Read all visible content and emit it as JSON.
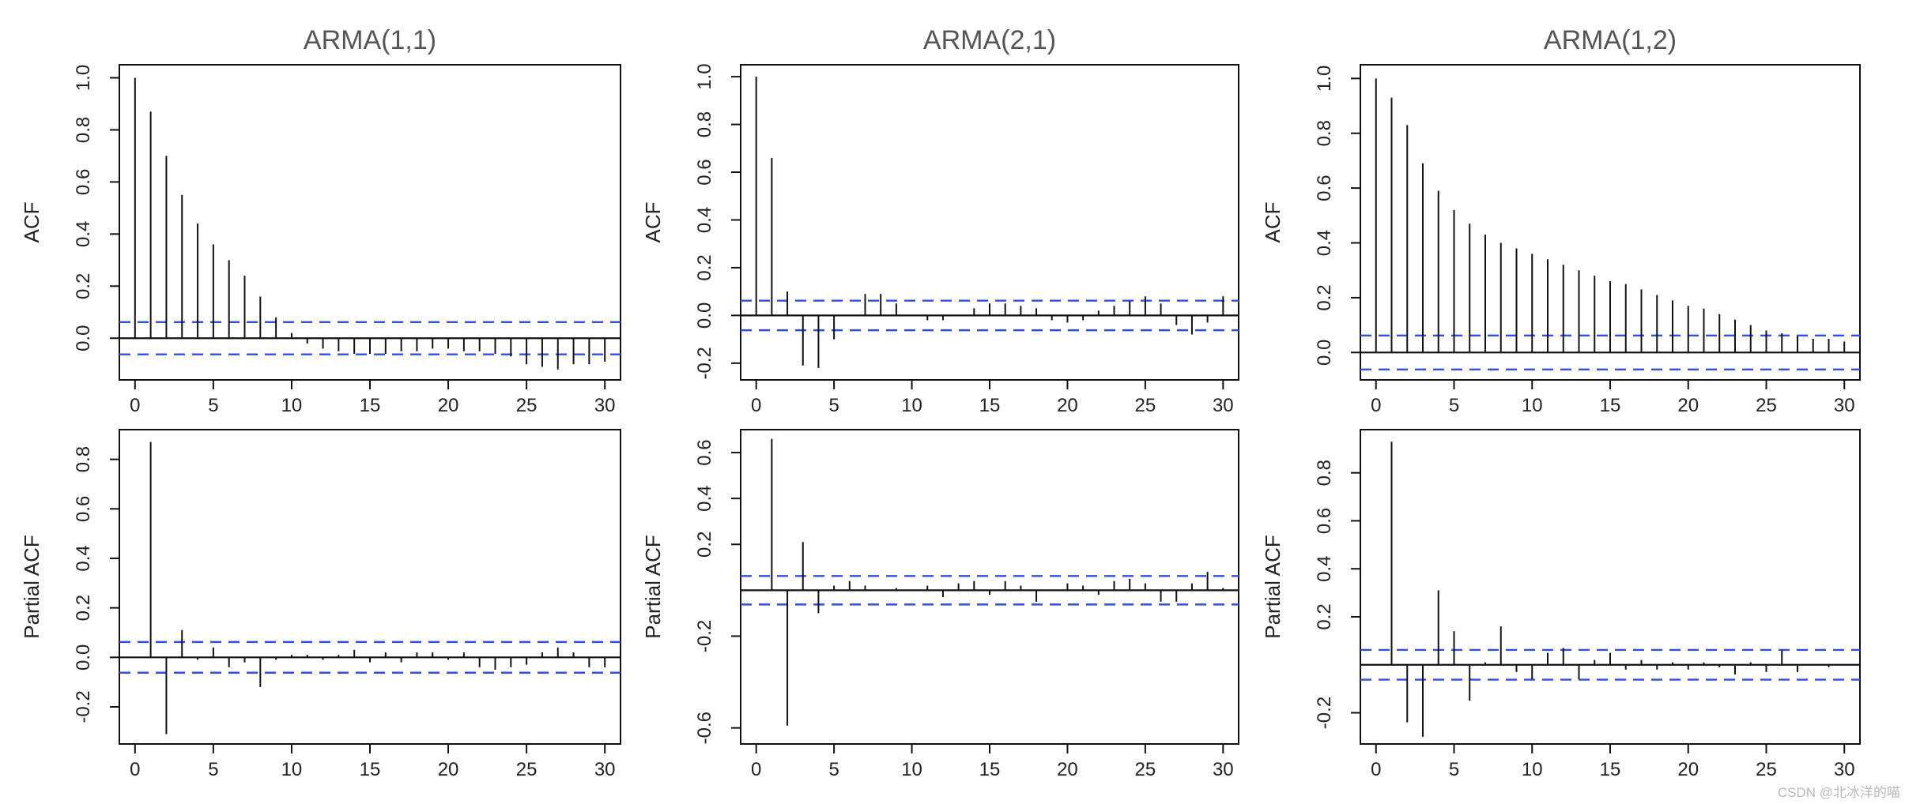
{
  "watermark": "CSDN @北冰洋的喵",
  "chart_data": [
    {
      "type": "bar",
      "subtype": "acf-stem",
      "title": "ARMA(1,1)",
      "ylabel": "ACF",
      "xlabel": "",
      "xlim": [
        -1,
        31
      ],
      "ylim": [
        -0.16,
        1.05
      ],
      "xticks": [
        0,
        5,
        10,
        15,
        20,
        25,
        30
      ],
      "yticks": [
        0.0,
        0.2,
        0.4,
        0.6,
        0.8,
        1.0
      ],
      "ytick_labels": [
        "0.0",
        "0.2",
        "0.4",
        "0.6",
        "0.8",
        "1.0"
      ],
      "ci": 0.062,
      "lags": [
        0,
        1,
        2,
        3,
        4,
        5,
        6,
        7,
        8,
        9,
        10,
        11,
        12,
        13,
        14,
        15,
        16,
        17,
        18,
        19,
        20,
        21,
        22,
        23,
        24,
        25,
        26,
        27,
        28,
        29,
        30
      ],
      "values": [
        1.0,
        0.87,
        0.7,
        0.55,
        0.44,
        0.36,
        0.3,
        0.24,
        0.16,
        0.08,
        0.02,
        -0.02,
        -0.04,
        -0.05,
        -0.06,
        -0.06,
        -0.06,
        -0.05,
        -0.05,
        -0.04,
        -0.04,
        -0.05,
        -0.05,
        -0.06,
        -0.07,
        -0.1,
        -0.11,
        -0.12,
        -0.1,
        -0.1,
        -0.09
      ]
    },
    {
      "type": "bar",
      "subtype": "acf-stem",
      "title": "ARMA(2,1)",
      "ylabel": "ACF",
      "xlabel": "",
      "xlim": [
        -1,
        31
      ],
      "ylim": [
        -0.27,
        1.05
      ],
      "xticks": [
        0,
        5,
        10,
        15,
        20,
        25,
        30
      ],
      "yticks": [
        -0.2,
        0.0,
        0.2,
        0.4,
        0.6,
        0.8,
        1.0
      ],
      "ytick_labels": [
        "-0.2",
        "0.0",
        "0.2",
        "0.4",
        "0.6",
        "0.8",
        "1.0"
      ],
      "ci": 0.062,
      "lags": [
        0,
        1,
        2,
        3,
        4,
        5,
        6,
        7,
        8,
        9,
        10,
        11,
        12,
        13,
        14,
        15,
        16,
        17,
        18,
        19,
        20,
        21,
        22,
        23,
        24,
        25,
        26,
        27,
        28,
        29,
        30
      ],
      "values": [
        1.0,
        0.66,
        0.1,
        -0.21,
        -0.22,
        -0.1,
        0.0,
        0.09,
        0.09,
        0.05,
        0.0,
        -0.02,
        -0.02,
        0.0,
        0.03,
        0.05,
        0.05,
        0.04,
        0.03,
        -0.02,
        -0.03,
        -0.02,
        0.02,
        0.04,
        0.06,
        0.08,
        0.05,
        -0.04,
        -0.08,
        -0.03,
        0.08
      ]
    },
    {
      "type": "bar",
      "subtype": "acf-stem",
      "title": "ARMA(1,2)",
      "ylabel": "ACF",
      "xlabel": "",
      "xlim": [
        -1,
        31
      ],
      "ylim": [
        -0.1,
        1.05
      ],
      "xticks": [
        0,
        5,
        10,
        15,
        20,
        25,
        30
      ],
      "yticks": [
        0.0,
        0.2,
        0.4,
        0.6,
        0.8,
        1.0
      ],
      "ytick_labels": [
        "0.0",
        "0.2",
        "0.4",
        "0.6",
        "0.8",
        "1.0"
      ],
      "ci": 0.062,
      "lags": [
        0,
        1,
        2,
        3,
        4,
        5,
        6,
        7,
        8,
        9,
        10,
        11,
        12,
        13,
        14,
        15,
        16,
        17,
        18,
        19,
        20,
        21,
        22,
        23,
        24,
        25,
        26,
        27,
        28,
        29,
        30
      ],
      "values": [
        1.0,
        0.93,
        0.83,
        0.69,
        0.59,
        0.52,
        0.47,
        0.43,
        0.4,
        0.38,
        0.36,
        0.34,
        0.32,
        0.3,
        0.28,
        0.26,
        0.25,
        0.23,
        0.21,
        0.19,
        0.17,
        0.16,
        0.14,
        0.12,
        0.1,
        0.08,
        0.07,
        0.06,
        0.05,
        0.05,
        0.04
      ]
    },
    {
      "type": "bar",
      "subtype": "pacf-stem",
      "title": "",
      "ylabel": "Partial ACF",
      "xlabel": "",
      "xlim": [
        -1,
        31
      ],
      "ylim": [
        -0.35,
        0.92
      ],
      "xticks": [
        0,
        5,
        10,
        15,
        20,
        25,
        30
      ],
      "yticks": [
        -0.2,
        0.0,
        0.2,
        0.4,
        0.6,
        0.8
      ],
      "ytick_labels": [
        "-0.2",
        "0.0",
        "0.2",
        "0.4",
        "0.6",
        "0.8"
      ],
      "ci": 0.062,
      "lags": [
        1,
        2,
        3,
        4,
        5,
        6,
        7,
        8,
        9,
        10,
        11,
        12,
        13,
        14,
        15,
        16,
        17,
        18,
        19,
        20,
        21,
        22,
        23,
        24,
        25,
        26,
        27,
        28,
        29,
        30
      ],
      "values": [
        0.87,
        -0.31,
        0.11,
        -0.01,
        0.04,
        -0.04,
        -0.02,
        -0.12,
        -0.01,
        0.01,
        0.01,
        -0.01,
        0.01,
        0.03,
        -0.02,
        0.02,
        -0.02,
        0.02,
        0.02,
        -0.01,
        0.02,
        -0.04,
        -0.05,
        -0.04,
        -0.03,
        0.02,
        0.04,
        0.02,
        -0.04,
        -0.04
      ]
    },
    {
      "type": "bar",
      "subtype": "pacf-stem",
      "title": "",
      "ylabel": "Partial ACF",
      "xlabel": "",
      "xlim": [
        -1,
        31
      ],
      "ylim": [
        -0.67,
        0.7
      ],
      "xticks": [
        0,
        5,
        10,
        15,
        20,
        25,
        30
      ],
      "yticks": [
        -0.6,
        -0.2,
        0.2,
        0.4,
        0.6
      ],
      "ytick_labels": [
        "-0.6",
        "-0.2",
        "0.2",
        "0.4",
        "0.6"
      ],
      "ci": 0.062,
      "lags": [
        1,
        2,
        3,
        4,
        5,
        6,
        7,
        8,
        9,
        10,
        11,
        12,
        13,
        14,
        15,
        16,
        17,
        18,
        19,
        20,
        21,
        22,
        23,
        24,
        25,
        26,
        27,
        28,
        29,
        30
      ],
      "values": [
        0.66,
        -0.59,
        0.21,
        -0.1,
        0.02,
        0.04,
        0.02,
        0.0,
        0.01,
        0.0,
        0.02,
        -0.03,
        0.03,
        0.04,
        -0.02,
        0.04,
        0.02,
        -0.05,
        0.0,
        0.03,
        0.02,
        -0.02,
        0.04,
        0.05,
        0.03,
        -0.05,
        -0.05,
        0.03,
        0.08,
        0.01
      ]
    },
    {
      "type": "bar",
      "subtype": "pacf-stem",
      "title": "",
      "ylabel": "Partial ACF",
      "xlabel": "",
      "xlim": [
        -1,
        31
      ],
      "ylim": [
        -0.33,
        0.98
      ],
      "xticks": [
        0,
        5,
        10,
        15,
        20,
        25,
        30
      ],
      "yticks": [
        -0.2,
        0.2,
        0.4,
        0.6,
        0.8
      ],
      "ytick_labels": [
        "-0.2",
        "0.2",
        "0.4",
        "0.6",
        "0.8"
      ],
      "ci": 0.062,
      "lags": [
        1,
        2,
        3,
        4,
        5,
        6,
        7,
        8,
        9,
        10,
        11,
        12,
        13,
        14,
        15,
        16,
        17,
        18,
        19,
        20,
        21,
        22,
        23,
        24,
        25,
        26,
        27,
        28,
        29,
        30
      ],
      "values": [
        0.93,
        -0.24,
        -0.3,
        0.31,
        0.14,
        -0.15,
        0.01,
        0.16,
        -0.03,
        -0.06,
        0.05,
        0.07,
        -0.06,
        0.02,
        0.05,
        -0.02,
        0.02,
        -0.02,
        0.01,
        -0.02,
        0.01,
        -0.01,
        -0.04,
        0.01,
        -0.03,
        0.06,
        -0.03,
        0.0,
        -0.01,
        0.0
      ]
    }
  ],
  "colors": {
    "ci_line": "#2f4fe6",
    "spike": "#111111",
    "frame": "#111111"
  }
}
